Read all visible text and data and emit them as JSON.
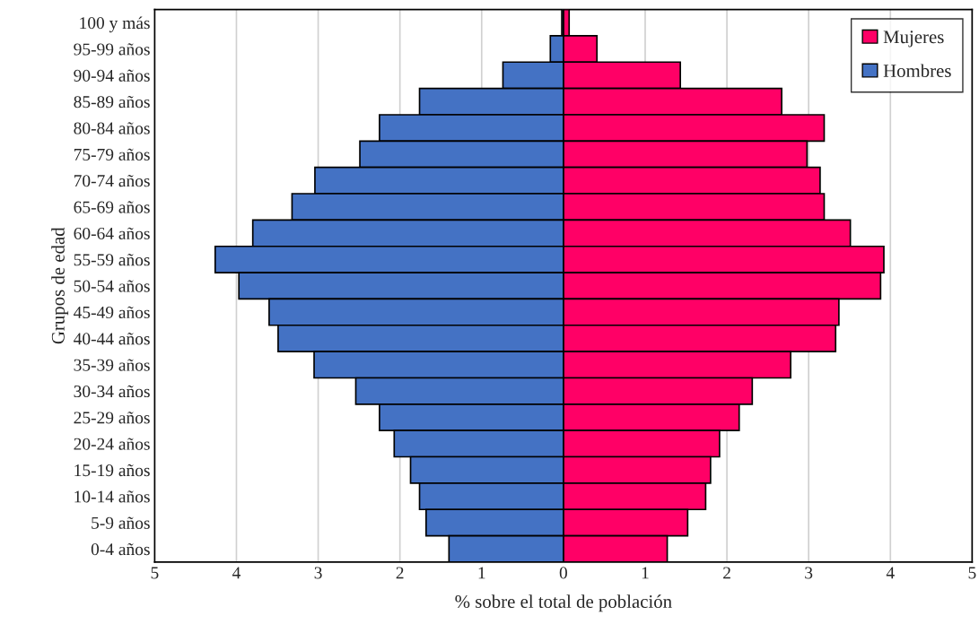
{
  "chart_data": {
    "type": "bar",
    "orientation": "horizontal",
    "xlabel": "% sobre el total de población",
    "ylabel": "Grupos de edad",
    "categories": [
      "100 y más",
      "95-99 años",
      "90-94 años",
      "85-89 años",
      "80-84 años",
      "75-79 años",
      "70-74 años",
      "65-69 años",
      "60-64 años",
      "55-59 años",
      "50-54 años",
      "45-49 años",
      "40-44 años",
      "35-39 años",
      "30-34 años",
      "25-29 años",
      "20-24 años",
      "15-19 años",
      "10-14 años",
      "5-9 años",
      "0-4 años"
    ],
    "series": [
      {
        "name": "Mujeres",
        "color": "#ff0066",
        "values": [
          0.07,
          0.41,
          1.43,
          2.67,
          3.19,
          2.98,
          3.14,
          3.19,
          3.51,
          3.92,
          3.88,
          3.37,
          3.33,
          2.78,
          2.31,
          2.15,
          1.91,
          1.8,
          1.74,
          1.52,
          1.27
        ]
      },
      {
        "name": "Hombres",
        "color": "#4472c4",
        "values": [
          -0.02,
          -0.16,
          -0.74,
          -1.76,
          -2.25,
          -2.49,
          -3.04,
          -3.32,
          -3.8,
          -4.26,
          -3.97,
          -3.6,
          -3.49,
          -3.05,
          -2.54,
          -2.25,
          -2.07,
          -1.87,
          -1.76,
          -1.68,
          -1.4
        ]
      }
    ],
    "xlim": [
      -5,
      5
    ],
    "xticks": [
      {
        "value": -5,
        "label": "5"
      },
      {
        "value": -4,
        "label": "4"
      },
      {
        "value": -3,
        "label": "3"
      },
      {
        "value": -2,
        "label": "2"
      },
      {
        "value": -1,
        "label": "1"
      },
      0,
      1,
      2,
      3,
      4,
      5
    ],
    "stacked": true,
    "grid": "x",
    "legend": "top right"
  }
}
